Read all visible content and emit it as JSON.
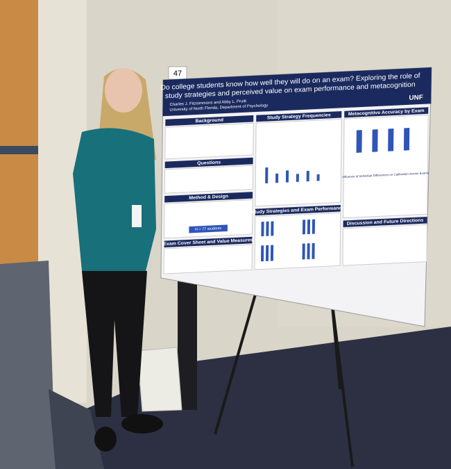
{
  "sign_number": "47",
  "poster": {
    "title_lines": [
      "Do college students know how well they will do on an exam? Exploring the role of",
      "study strategies and perceived value on exam performance and metacognition"
    ],
    "authors": "Charles J. Fitzsimmons and Abby L. Pruitt",
    "affiliation": "University of North Florida, Department of Psychology",
    "logo": "UNF",
    "sections": {
      "background": "Background",
      "questions": "Questions",
      "method": "Method & Design",
      "sample": "N = 77 students",
      "exam_cover": "Exam Cover Sheet and Value Measures",
      "strategy_frequencies": "Study Strategy Frequencies",
      "strategies_performance": "Study Strategies and Exam Performance",
      "metacognitive_accuracy": "Metacognitive Accuracy by Exam",
      "individual_differences": "Influence of Individual Differences on Calibration Across Exams",
      "discussion": "Discussion and Future Directions"
    }
  }
}
